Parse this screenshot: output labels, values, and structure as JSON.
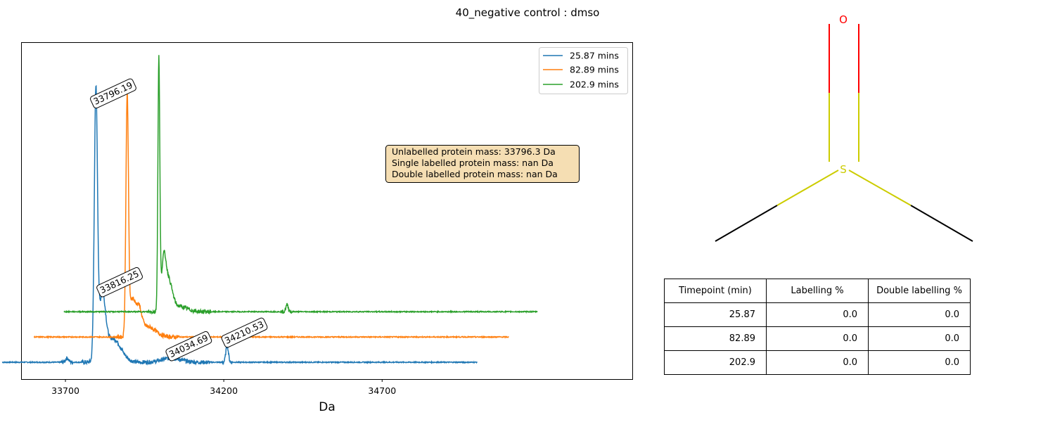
{
  "figure": {
    "title": "40_negative control : dmso"
  },
  "chart_data": {
    "type": "line",
    "xlabel": "Da",
    "ylabel": "",
    "xlim": [
      33560,
      35490
    ],
    "ylim": [
      0,
      1
    ],
    "x_ticks": [
      33700,
      34200,
      34700
    ],
    "grid": false,
    "legend_position": "top-right",
    "series": [
      {
        "name": "25.87 mins",
        "color": "#1f77b4",
        "x_range": [
          33500,
          35000
        ],
        "baseline": 0.05,
        "peaks": [
          {
            "x": 33796.19,
            "height": 0.79,
            "width": 5
          },
          {
            "x": 33816.25,
            "height": 0.18,
            "width": 10
          },
          {
            "x": 33850,
            "height": 0.07,
            "width": 25
          },
          {
            "x": 34034.69,
            "height": 0.012,
            "width": 30
          },
          {
            "x": 34210.53,
            "height": 0.05,
            "width": 4
          },
          {
            "x": 33705,
            "height": 0.012,
            "width": 5
          }
        ]
      },
      {
        "name": "82.89 mins",
        "color": "#ff7f0e",
        "x_range": [
          33600,
          35100
        ],
        "baseline": 0.125,
        "peaks": [
          {
            "x": 33895,
            "height": 0.71,
            "width": 4
          },
          {
            "x": 33910,
            "height": 0.1,
            "width": 8
          },
          {
            "x": 33930,
            "height": 0.08,
            "width": 10
          },
          {
            "x": 33960,
            "height": 0.03,
            "width": 25
          }
        ]
      },
      {
        "name": "202.9 mins",
        "color": "#2ca02c",
        "x_range": [
          33695,
          35190
        ],
        "baseline": 0.2,
        "peaks": [
          {
            "x": 33995,
            "height": 0.74,
            "width": 3
          },
          {
            "x": 34010,
            "height": 0.13,
            "width": 7
          },
          {
            "x": 34025,
            "height": 0.09,
            "width": 12
          },
          {
            "x": 34060,
            "height": 0.015,
            "width": 25
          },
          {
            "x": 34400,
            "height": 0.02,
            "width": 4
          }
        ]
      }
    ],
    "peak_labels": [
      {
        "text": "33796.19",
        "x": 33796.19,
        "y": 0.81
      },
      {
        "text": "33816.25",
        "x": 33816.25,
        "y": 0.25
      },
      {
        "text": "34034.69",
        "x": 34034.69,
        "y": 0.06
      },
      {
        "text": "34210.53",
        "x": 34210.53,
        "y": 0.1
      }
    ],
    "info_box": [
      "Unlabelled protein mass: 33796.3 Da",
      "Single labelled protein mass: nan Da",
      "Double labelled protein mass: nan Da"
    ]
  },
  "molecule": {
    "atoms": [
      {
        "label": "O",
        "color": "#ff0000"
      },
      {
        "label": "S",
        "color": "#cccc00"
      }
    ]
  },
  "table": {
    "headers": [
      "Timepoint (min)",
      "Labelling %",
      "Double labelling %"
    ],
    "rows": [
      [
        "25.87",
        "0.0",
        "0.0"
      ],
      [
        "82.89",
        "0.0",
        "0.0"
      ],
      [
        "202.9",
        "0.0",
        "0.0"
      ]
    ]
  }
}
